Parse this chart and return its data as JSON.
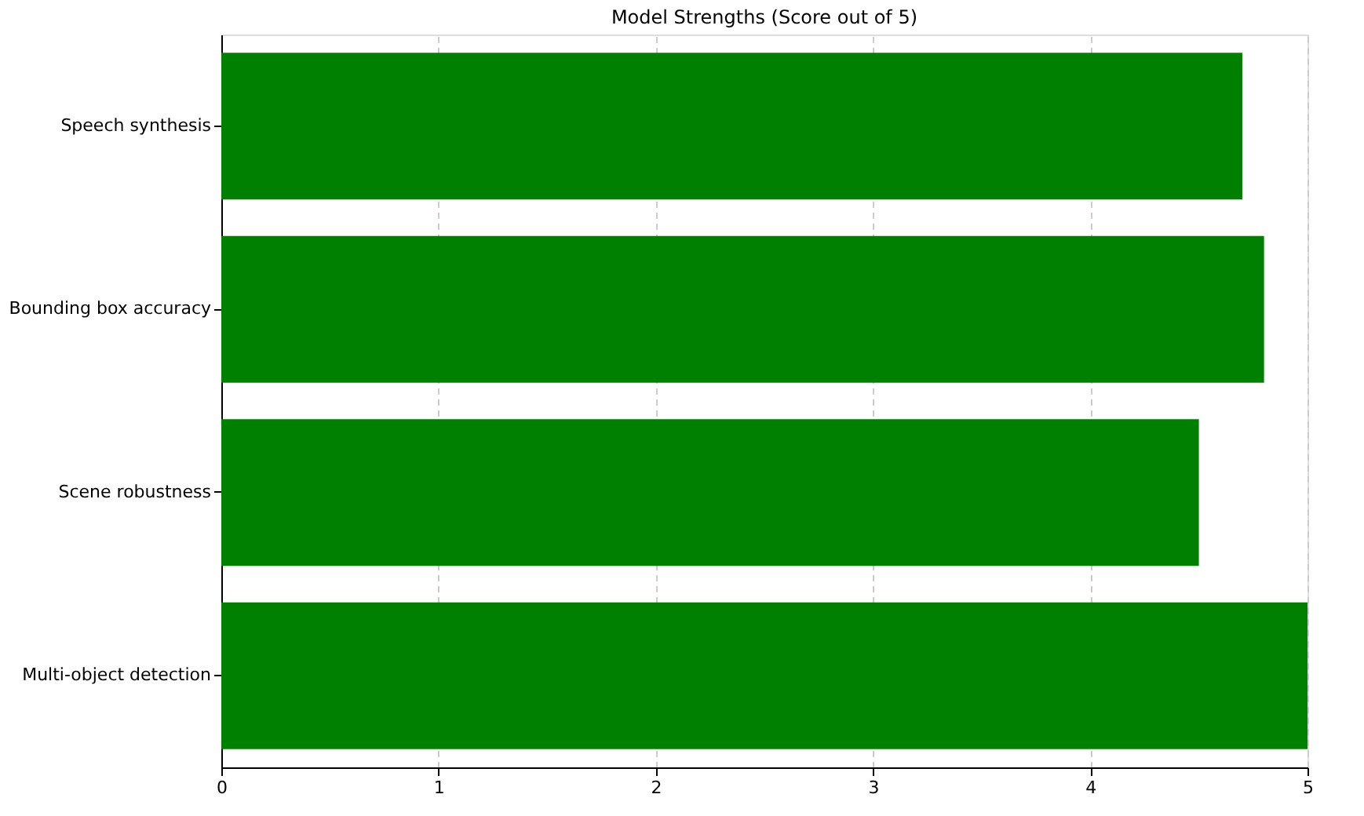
{
  "chart_data": {
    "type": "bar",
    "orientation": "horizontal",
    "title": "Model Strengths (Score out of 5)",
    "categories": [
      "Speech synthesis",
      "Bounding box accuracy",
      "Scene robustness",
      "Multi-object detection"
    ],
    "values": [
      4.7,
      4.8,
      4.5,
      5.0
    ],
    "color": "#008000",
    "xlim": [
      0,
      5
    ],
    "xticks": [
      0,
      1,
      2,
      3,
      4,
      5
    ],
    "grid": "x"
  }
}
